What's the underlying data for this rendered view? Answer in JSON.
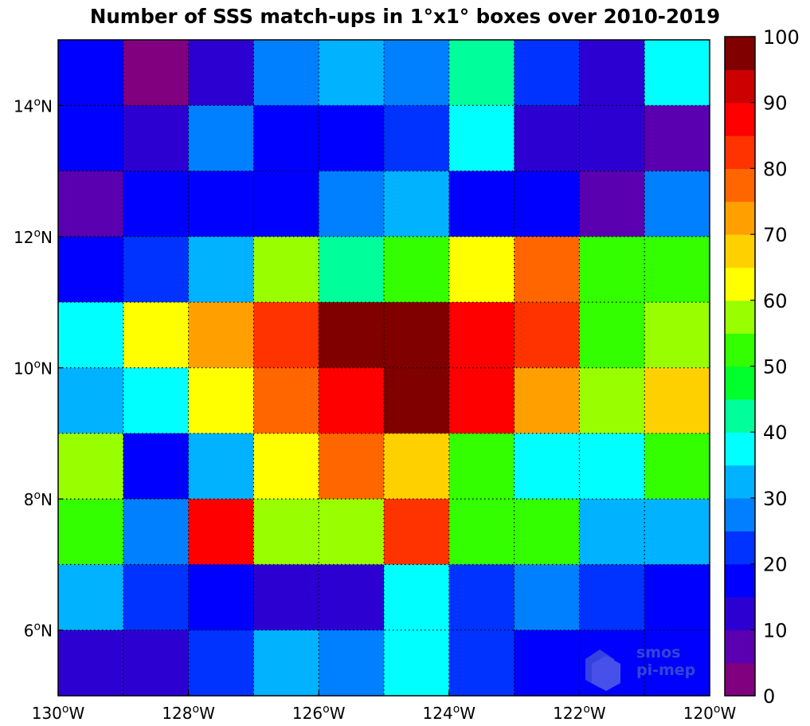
{
  "chart_data": {
    "type": "heatmap",
    "title": "Number of SSS match-ups in 1°x1° boxes over 2010-2019",
    "x_range": [
      -130,
      -120
    ],
    "y_range": [
      5,
      15
    ],
    "x_ticks": [
      {
        "value": -130,
        "label": "130°W"
      },
      {
        "value": -128,
        "label": "128°W"
      },
      {
        "value": -126,
        "label": "126°W"
      },
      {
        "value": -124,
        "label": "124°W"
      },
      {
        "value": -122,
        "label": "122°W"
      },
      {
        "value": -120,
        "label": "120°W"
      }
    ],
    "y_ticks": [
      {
        "value": 6,
        "label": "6°N"
      },
      {
        "value": 8,
        "label": "8°N"
      },
      {
        "value": 10,
        "label": "10°N"
      },
      {
        "value": 12,
        "label": "12°N"
      },
      {
        "value": 14,
        "label": "14°N"
      }
    ],
    "grid": "dotted, every 1°",
    "rows_lat_top_edge_desc": [
      15,
      14,
      13,
      12,
      11,
      10,
      9,
      8,
      7,
      6
    ],
    "values": [
      [
        17,
        2,
        12,
        27,
        33,
        27,
        42,
        20,
        13,
        35
      ],
      [
        17,
        12,
        27,
        17,
        17,
        22,
        37,
        12,
        12,
        7
      ],
      [
        7,
        17,
        17,
        17,
        27,
        32,
        17,
        17,
        7,
        27
      ],
      [
        17,
        22,
        32,
        57,
        42,
        52,
        62,
        77,
        52,
        52
      ],
      [
        37,
        62,
        72,
        82,
        97,
        97,
        87,
        82,
        52,
        57
      ],
      [
        32,
        37,
        62,
        77,
        87,
        97,
        87,
        72,
        57,
        67
      ],
      [
        57,
        17,
        32,
        62,
        77,
        67,
        52,
        37,
        37,
        52
      ],
      [
        52,
        27,
        87,
        57,
        57,
        82,
        52,
        52,
        32,
        32
      ],
      [
        32,
        22,
        17,
        12,
        12,
        37,
        22,
        27,
        22,
        17
      ],
      [
        12,
        12,
        22,
        32,
        27,
        37,
        22,
        17,
        17,
        17
      ]
    ],
    "colorbar": {
      "range": [
        0,
        100
      ],
      "ticks": [
        {
          "value": 0,
          "label": "0"
        },
        {
          "value": 10,
          "label": "10"
        },
        {
          "value": 20,
          "label": "20"
        },
        {
          "value": 30,
          "label": "30"
        },
        {
          "value": 40,
          "label": "40"
        },
        {
          "value": 50,
          "label": "50"
        },
        {
          "value": 60,
          "label": "60"
        },
        {
          "value": 70,
          "label": "70"
        },
        {
          "value": 80,
          "label": "80"
        },
        {
          "value": 90,
          "label": "90"
        },
        {
          "value": 100,
          "label": "100"
        }
      ],
      "colors": [
        "#800080",
        "#5a00b0",
        "#2d00d2",
        "#0000ff",
        "#0033ff",
        "#0080ff",
        "#00b2ff",
        "#00ffff",
        "#00ff9a",
        "#00ff2d",
        "#33ff00",
        "#99ff00",
        "#ffff00",
        "#ffd000",
        "#ffa000",
        "#ff6600",
        "#ff3300",
        "#ff0000",
        "#cc0000",
        "#800000"
      ]
    }
  },
  "watermark": {
    "line1": "smos",
    "line2": "pi-mep"
  }
}
